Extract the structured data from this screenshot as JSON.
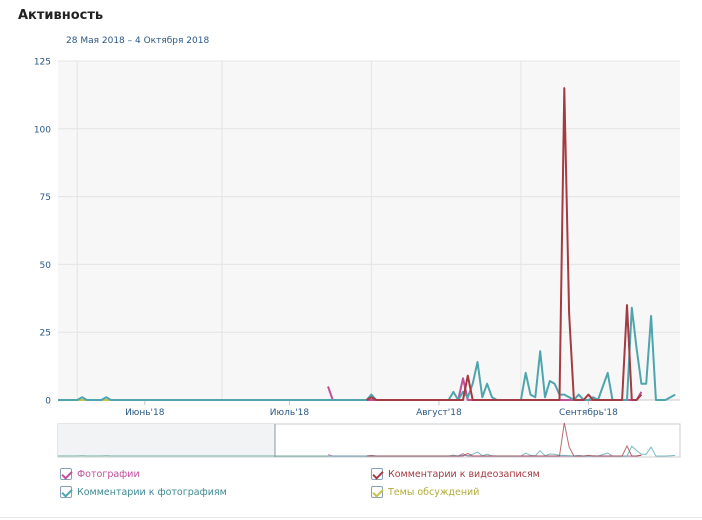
{
  "header": {
    "title": "Активность",
    "date_range": "28 Мая 2018 – 4 Октября 2018"
  },
  "colors": {
    "photos": "#c0509a",
    "photo_comments": "#4fa5ad",
    "video_comments": "#a53b42",
    "discussions": "#c8c44a"
  },
  "legend": {
    "photos": "Фотографии",
    "photo_comments": "Комментарии к фотографиям",
    "video_comments": "Комментарии к видеозаписям",
    "discussions": "Темы обсуждений"
  },
  "chart_data": {
    "type": "line",
    "title": "Активность",
    "subtitle": "28 Мая 2018 – 4 Октября 2018",
    "x_range": [
      "2018-05-28",
      "2018-10-04"
    ],
    "ylim": [
      0,
      125
    ],
    "y_ticks": [
      0,
      25,
      50,
      75,
      100,
      125
    ],
    "y_tick_labels": [
      "0",
      "25",
      "50",
      "75",
      "100",
      "125"
    ],
    "x_ticks": [
      {
        "date": "2018-06-01",
        "label": ""
      },
      {
        "date": "2018-06-15",
        "label": "Июнь'18"
      },
      {
        "date": "2018-07-01",
        "label": ""
      },
      {
        "date": "2018-07-15",
        "label": "Июль'18"
      },
      {
        "date": "2018-08-01",
        "label": ""
      },
      {
        "date": "2018-08-15",
        "label": "Август'18"
      },
      {
        "date": "2018-09-01",
        "label": ""
      },
      {
        "date": "2018-09-15",
        "label": "Сентябрь'18"
      }
    ],
    "grid": true,
    "legend_position": "bottom",
    "series": [
      {
        "key": "photo_comments",
        "name": "Комментарии к фотографиям",
        "points": [
          [
            "2018-05-28",
            0
          ],
          [
            "2018-06-01",
            0
          ],
          [
            "2018-06-02",
            1
          ],
          [
            "2018-06-03",
            0
          ],
          [
            "2018-06-06",
            0
          ],
          [
            "2018-06-07",
            1
          ],
          [
            "2018-06-08",
            0
          ],
          [
            "2018-07-26",
            0
          ],
          [
            "2018-07-31",
            0
          ],
          [
            "2018-08-01",
            2
          ],
          [
            "2018-08-02",
            0
          ],
          [
            "2018-08-17",
            0
          ],
          [
            "2018-08-18",
            3
          ],
          [
            "2018-08-19",
            0
          ],
          [
            "2018-08-20",
            3
          ],
          [
            "2018-08-21",
            1
          ],
          [
            "2018-08-22",
            6
          ],
          [
            "2018-08-23",
            14
          ],
          [
            "2018-08-24",
            1
          ],
          [
            "2018-08-25",
            6
          ],
          [
            "2018-08-26",
            1
          ],
          [
            "2018-08-27",
            0
          ],
          [
            "2018-08-29",
            0
          ],
          [
            "2018-08-30",
            0
          ],
          [
            "2018-08-31",
            0
          ],
          [
            "2018-09-01",
            0
          ],
          [
            "2018-09-02",
            10
          ],
          [
            "2018-09-03",
            2
          ],
          [
            "2018-09-04",
            1
          ],
          [
            "2018-09-05",
            18
          ],
          [
            "2018-09-06",
            1
          ],
          [
            "2018-09-07",
            7
          ],
          [
            "2018-09-08",
            6
          ],
          [
            "2018-09-09",
            2
          ],
          [
            "2018-09-10",
            2
          ],
          [
            "2018-09-11",
            1
          ],
          [
            "2018-09-12",
            0
          ],
          [
            "2018-09-13",
            2
          ],
          [
            "2018-09-14",
            0
          ],
          [
            "2018-09-15",
            0
          ],
          [
            "2018-09-16",
            1
          ],
          [
            "2018-09-17",
            0
          ],
          [
            "2018-09-19",
            10
          ],
          [
            "2018-09-20",
            0
          ],
          [
            "2018-09-22",
            0
          ],
          [
            "2018-09-23",
            0
          ],
          [
            "2018-09-24",
            34
          ],
          [
            "2018-09-25",
            19
          ],
          [
            "2018-09-26",
            6
          ],
          [
            "2018-09-27",
            6
          ],
          [
            "2018-09-28",
            31
          ],
          [
            "2018-09-29",
            0
          ],
          [
            "2018-09-30",
            0
          ],
          [
            "2018-10-01",
            0
          ],
          [
            "2018-10-02",
            1
          ],
          [
            "2018-10-03",
            2
          ]
        ]
      },
      {
        "key": "video_comments",
        "name": "Комментарии к видеозаписям",
        "points": [
          [
            "2018-07-31",
            0
          ],
          [
            "2018-08-01",
            1
          ],
          [
            "2018-08-02",
            0
          ],
          [
            "2018-08-20",
            0
          ],
          [
            "2018-08-21",
            9
          ],
          [
            "2018-08-22",
            0
          ],
          [
            "2018-09-09",
            0
          ],
          [
            "2018-09-10",
            115
          ],
          [
            "2018-09-11",
            32
          ],
          [
            "2018-09-12",
            0
          ],
          [
            "2018-09-14",
            0
          ],
          [
            "2018-09-15",
            2
          ],
          [
            "2018-09-16",
            0
          ],
          [
            "2018-09-20",
            0
          ],
          [
            "2018-09-22",
            0
          ],
          [
            "2018-09-23",
            35
          ],
          [
            "2018-09-24",
            0
          ],
          [
            "2018-09-25",
            0
          ],
          [
            "2018-09-26",
            2
          ]
        ]
      },
      {
        "key": "photos",
        "name": "Фотографии",
        "points": [
          [
            "2018-07-23",
            5
          ],
          [
            "2018-07-24",
            0
          ],
          [
            "2018-08-19",
            0
          ],
          [
            "2018-08-20",
            8
          ],
          [
            "2018-08-21",
            0
          ],
          [
            "2018-09-25",
            0
          ],
          [
            "2018-09-26",
            3
          ]
        ]
      },
      {
        "key": "discussions",
        "name": "Темы обсуждений",
        "points": [
          [
            "2018-05-28",
            0
          ],
          [
            "2018-07-23",
            0
          ]
        ]
      }
    ]
  }
}
